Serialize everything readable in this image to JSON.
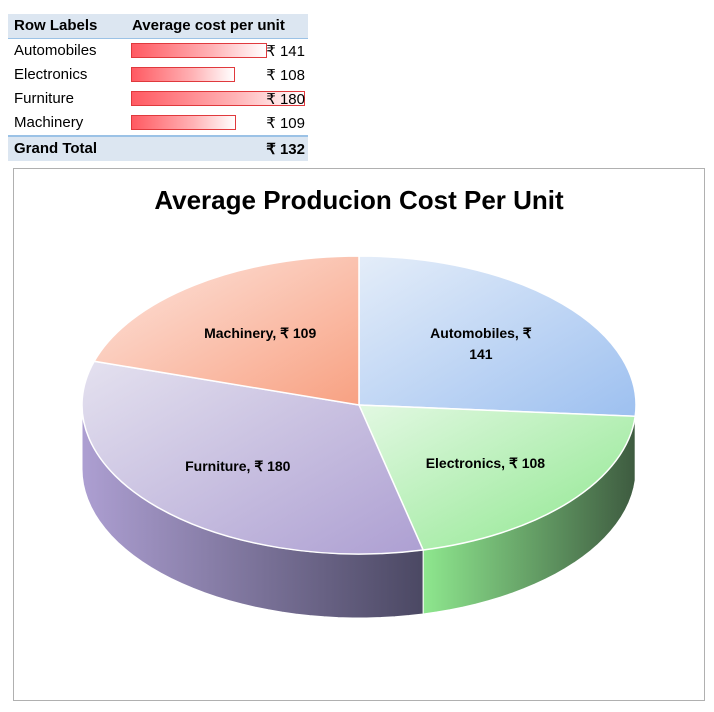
{
  "pivot": {
    "header": {
      "row_labels": "Row Labels",
      "value_header": "Average cost per unit"
    },
    "rows": [
      {
        "label": "Automobiles",
        "display": "₹ 141",
        "value": 141
      },
      {
        "label": "Electronics",
        "display": "₹ 108",
        "value": 108
      },
      {
        "label": "Furniture",
        "display": "₹ 180",
        "value": 180
      },
      {
        "label": "Machinery",
        "display": "₹ 109",
        "value": 109
      }
    ],
    "grand_total": {
      "label": "Grand Total",
      "display": "₹ 132"
    },
    "databar_color": "#ff5a62"
  },
  "chart_data": {
    "type": "pie",
    "title": "Average Producion Cost Per Unit",
    "slices": [
      {
        "category": "Automobiles",
        "value": 141,
        "label_line1": "Automobiles, ₹",
        "label_line2": "141",
        "color_light": "#e4edf9",
        "color_dark": "#9dc0f0",
        "side_dark": "#4f5e75"
      },
      {
        "category": "Electronics",
        "value": 108,
        "label_line1": "Electronics, ₹ 108",
        "label_line2": "",
        "color_light": "#e2f8e2",
        "color_dark": "#8ee78e",
        "side_dark": "#3e5b40"
      },
      {
        "category": "Furniture",
        "value": 180,
        "label_line1": "Furniture, ₹ 180",
        "label_line2": "",
        "color_light": "#e4e1ef",
        "color_dark": "#ad9fd2",
        "side_dark": "#4b4863"
      },
      {
        "category": "Machinery",
        "value": 109,
        "label_line1": "Machinery, ₹ 109",
        "label_line2": "",
        "color_light": "#fde5de",
        "color_dark": "#f8a182",
        "side_dark": "#7a5040"
      }
    ],
    "style": "3d",
    "legend": "none"
  }
}
